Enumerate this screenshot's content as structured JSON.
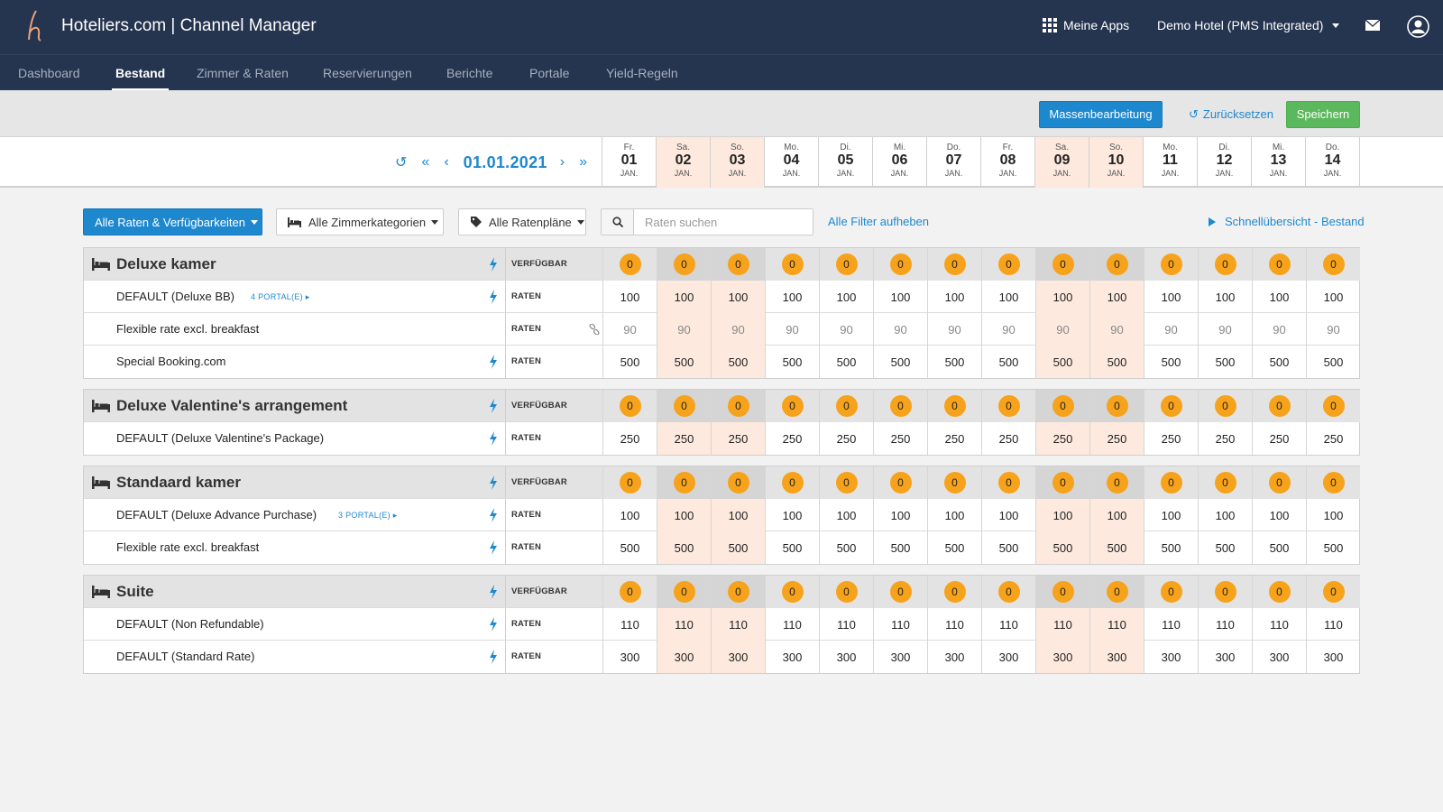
{
  "app": {
    "title": "Hoteliers.com | Channel Manager",
    "my_apps": "Meine Apps",
    "hotel": "Demo Hotel (PMS Integrated)"
  },
  "nav": {
    "items": [
      "Dashboard",
      "Bestand",
      "Zimmer & Raten",
      "Reservierungen",
      "Berichte",
      "Portale",
      "Yield-Regeln"
    ],
    "active": "Bestand"
  },
  "toolbar": {
    "mass_edit": "Massenbearbeitung",
    "reset": "Zurücksetzen",
    "save": "Speichern"
  },
  "datebar": {
    "current_date": "01.01.2021",
    "days": [
      {
        "dow": "Fr.",
        "num": "01",
        "mon": "JAN.",
        "weekend": false
      },
      {
        "dow": "Sa.",
        "num": "02",
        "mon": "JAN.",
        "weekend": true
      },
      {
        "dow": "So.",
        "num": "03",
        "mon": "JAN.",
        "weekend": true
      },
      {
        "dow": "Mo.",
        "num": "04",
        "mon": "JAN.",
        "weekend": false
      },
      {
        "dow": "Di.",
        "num": "05",
        "mon": "JAN.",
        "weekend": false
      },
      {
        "dow": "Mi.",
        "num": "06",
        "mon": "JAN.",
        "weekend": false
      },
      {
        "dow": "Do.",
        "num": "07",
        "mon": "JAN.",
        "weekend": false
      },
      {
        "dow": "Fr.",
        "num": "08",
        "mon": "JAN.",
        "weekend": false
      },
      {
        "dow": "Sa.",
        "num": "09",
        "mon": "JAN.",
        "weekend": true
      },
      {
        "dow": "So.",
        "num": "10",
        "mon": "JAN.",
        "weekend": true
      },
      {
        "dow": "Mo.",
        "num": "11",
        "mon": "JAN.",
        "weekend": false
      },
      {
        "dow": "Di.",
        "num": "12",
        "mon": "JAN.",
        "weekend": false
      },
      {
        "dow": "Mi.",
        "num": "13",
        "mon": "JAN.",
        "weekend": false
      },
      {
        "dow": "Do.",
        "num": "14",
        "mon": "JAN.",
        "weekend": false
      }
    ]
  },
  "filters": {
    "rates_availability": "Alle Raten & Verfügbarkeiten",
    "room_categories": "Alle Zimmerkategorien",
    "rate_plans": "Alle Ratenpläne",
    "search_placeholder": "Raten suchen",
    "clear_filters": "Alle Filter aufheben",
    "quick_overview": "Schnellübersicht - Bestand"
  },
  "labels": {
    "available": "VERFÜGBAR",
    "rates": "RATEN"
  },
  "groups": [
    {
      "name": "Deluxe kamer",
      "availability": [
        "0",
        "0",
        "0",
        "0",
        "0",
        "0",
        "0",
        "0",
        "0",
        "0",
        "0",
        "0",
        "0",
        "0"
      ],
      "rates": [
        {
          "name": "DEFAULT (Deluxe BB)",
          "portal": "4 PORTAL(E)",
          "bolt": true,
          "muted": false,
          "link": false,
          "values": [
            "100",
            "100",
            "100",
            "100",
            "100",
            "100",
            "100",
            "100",
            "100",
            "100",
            "100",
            "100",
            "100",
            "100"
          ]
        },
        {
          "name": "Flexible rate excl. breakfast",
          "portal": "",
          "bolt": false,
          "muted": true,
          "link": true,
          "values": [
            "90",
            "90",
            "90",
            "90",
            "90",
            "90",
            "90",
            "90",
            "90",
            "90",
            "90",
            "90",
            "90",
            "90"
          ]
        },
        {
          "name": "Special Booking.com",
          "portal": "",
          "bolt": true,
          "muted": false,
          "link": false,
          "values": [
            "500",
            "500",
            "500",
            "500",
            "500",
            "500",
            "500",
            "500",
            "500",
            "500",
            "500",
            "500",
            "500",
            "500"
          ]
        }
      ]
    },
    {
      "name": "Deluxe Valentine's arrangement",
      "availability": [
        "0",
        "0",
        "0",
        "0",
        "0",
        "0",
        "0",
        "0",
        "0",
        "0",
        "0",
        "0",
        "0",
        "0"
      ],
      "rates": [
        {
          "name": "DEFAULT (Deluxe Valentine's Package)",
          "portal": "",
          "bolt": true,
          "muted": false,
          "link": false,
          "values": [
            "250",
            "250",
            "250",
            "250",
            "250",
            "250",
            "250",
            "250",
            "250",
            "250",
            "250",
            "250",
            "250",
            "250"
          ]
        }
      ]
    },
    {
      "name": "Standaard kamer",
      "availability": [
        "0",
        "0",
        "0",
        "0",
        "0",
        "0",
        "0",
        "0",
        "0",
        "0",
        "0",
        "0",
        "0",
        "0"
      ],
      "rates": [
        {
          "name": "DEFAULT (Deluxe Advance Purchase)",
          "portal": "3 PORTAL(E)",
          "bolt": true,
          "muted": false,
          "link": false,
          "values": [
            "100",
            "100",
            "100",
            "100",
            "100",
            "100",
            "100",
            "100",
            "100",
            "100",
            "100",
            "100",
            "100",
            "100"
          ]
        },
        {
          "name": "Flexible rate excl. breakfast",
          "portal": "",
          "bolt": true,
          "muted": false,
          "link": false,
          "values": [
            "500",
            "500",
            "500",
            "500",
            "500",
            "500",
            "500",
            "500",
            "500",
            "500",
            "500",
            "500",
            "500",
            "500"
          ]
        }
      ]
    },
    {
      "name": "Suite",
      "availability": [
        "0",
        "0",
        "0",
        "0",
        "0",
        "0",
        "0",
        "0",
        "0",
        "0",
        "0",
        "0",
        "0",
        "0"
      ],
      "rates": [
        {
          "name": "DEFAULT (Non Refundable)",
          "portal": "",
          "bolt": true,
          "muted": false,
          "link": false,
          "values": [
            "110",
            "110",
            "110",
            "110",
            "110",
            "110",
            "110",
            "110",
            "110",
            "110",
            "110",
            "110",
            "110",
            "110"
          ]
        },
        {
          "name": "DEFAULT (Standard Rate)",
          "portal": "",
          "bolt": true,
          "muted": false,
          "link": false,
          "values": [
            "300",
            "300",
            "300",
            "300",
            "300",
            "300",
            "300",
            "300",
            "300",
            "300",
            "300",
            "300",
            "300",
            "300"
          ]
        }
      ]
    }
  ],
  "colors": {
    "topbar": "#25344f",
    "accent": "#1e88cf",
    "save": "#5cb85c",
    "weekend": "#fde9de",
    "badge": "#f7a21b"
  }
}
